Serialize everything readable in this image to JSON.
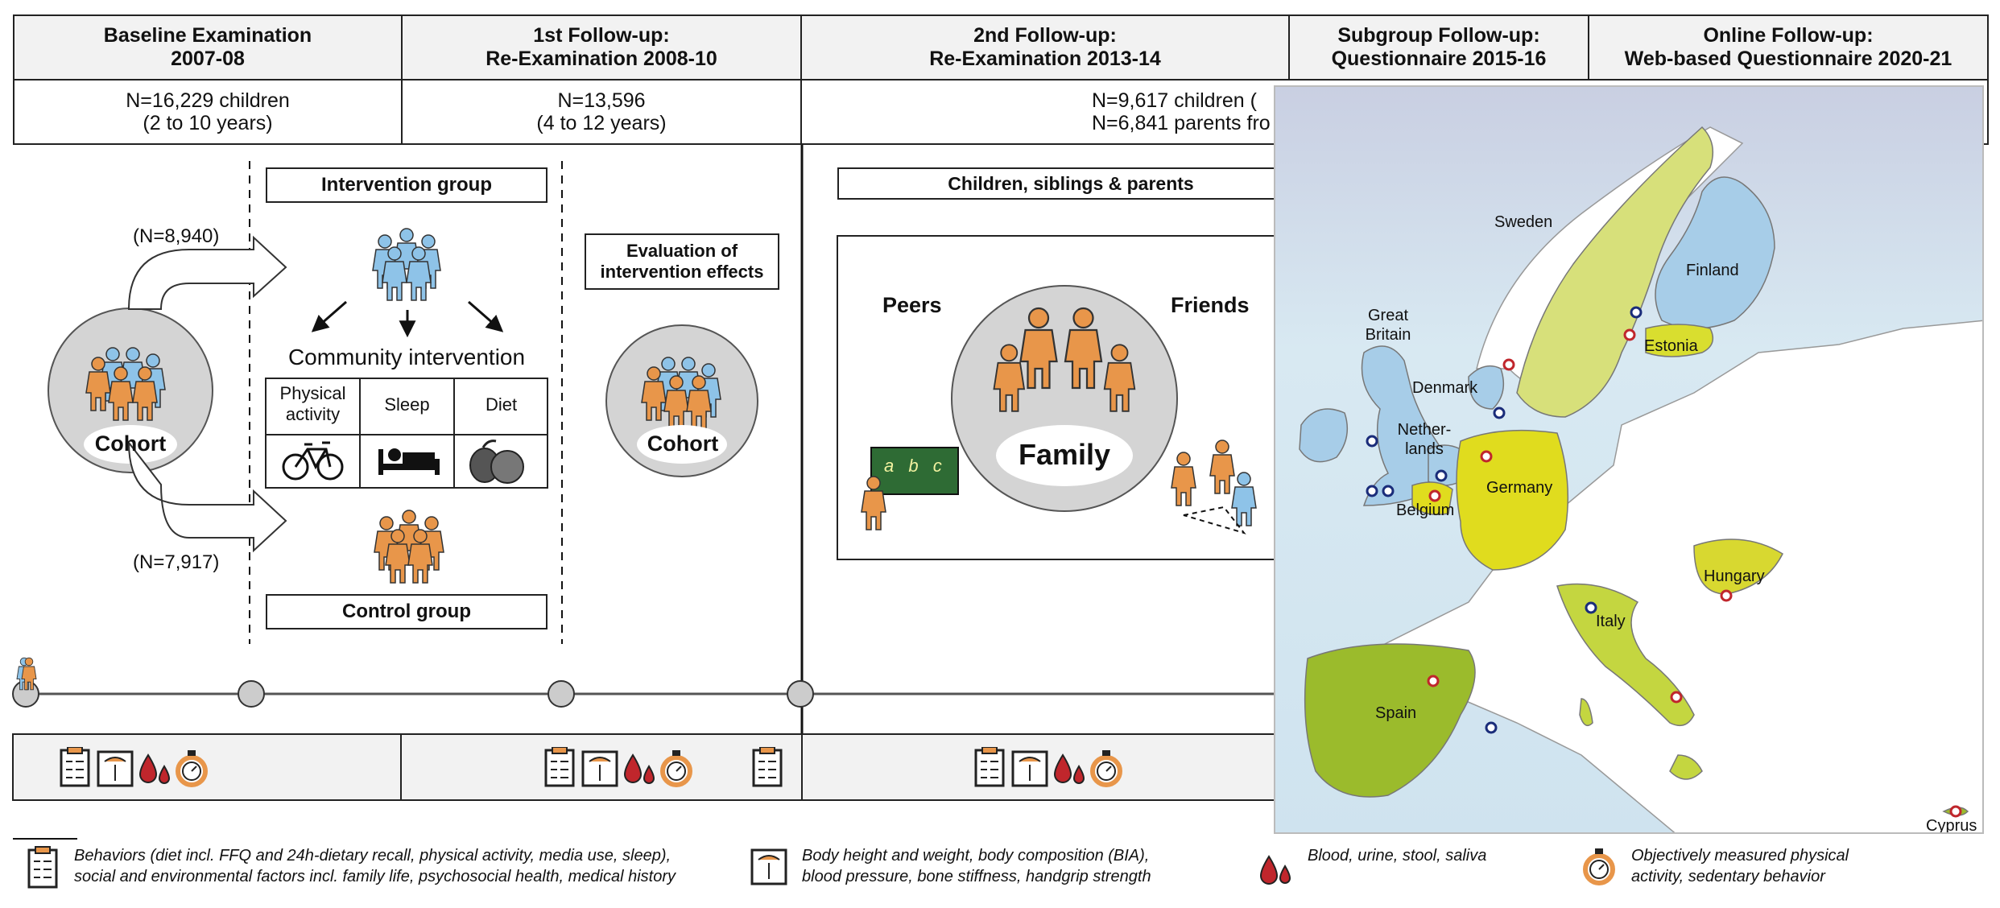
{
  "phases": [
    {
      "id": "baseline",
      "title": [
        "Baseline Examination",
        "2007-08"
      ],
      "n": [
        "N=16,229 children",
        "(2 to 10 years)"
      ]
    },
    {
      "id": "fu1",
      "title": [
        "1st Follow-up:",
        "Re-Examination 2008-10"
      ],
      "n": [
        "N=13,596",
        "(4 to 12 years)"
      ]
    },
    {
      "id": "fu2",
      "title": [
        "2nd Follow-up:",
        "Re-Examination 2013-14"
      ],
      "n": [
        "N=9,617 children (",
        "N=6,841 parents fro"
      ]
    },
    {
      "id": "subgroup",
      "title": [
        "Subgroup Follow-up:",
        "Questionnaire 2015-16"
      ]
    },
    {
      "id": "online",
      "title": [
        "Online Follow-up:",
        "Web-based Questionnaire 2020-21"
      ]
    }
  ],
  "baseline": {
    "cohort_label": "Cohort",
    "n_intervention": "(N=8,940)",
    "n_control": "(N=7,917)"
  },
  "intervention": {
    "group_label": "Intervention group",
    "community_label": "Community intervention",
    "components": [
      "Physical activity",
      "Sleep",
      "Diet"
    ],
    "control_label": "Control group"
  },
  "evaluation": {
    "label": [
      "Evaluation of",
      "intervention effects"
    ],
    "cohort_label": "Cohort"
  },
  "family_block": {
    "header": "Children, siblings & parents",
    "peers": "Peers",
    "friends": "Friends",
    "family": "Family",
    "board_text": "a b c"
  },
  "map": {
    "countries": [
      "Sweden",
      "Finland",
      "Estonia",
      "Great Britain",
      "Denmark",
      "Nether- lands",
      "Germany",
      "Belgium",
      "Hungary",
      "Italy",
      "Spain",
      "Cyprus"
    ],
    "colors": {
      "sea": "#cfe3ef",
      "land": "#ffffff",
      "green_dark": "#9bbb2c",
      "green_mid": "#c4d640",
      "yellow": "#e0dc1e",
      "blue": "#a7cde8"
    }
  },
  "legend": [
    {
      "icon": "clipboard-icon",
      "text": [
        "Behaviors (diet incl. FFQ and 24h-dietary recall, physical activity, media use, sleep),",
        "social and environmental factors incl. family life, psychosocial health, medical history"
      ]
    },
    {
      "icon": "scale-icon",
      "text": [
        "Body height and weight, body composition (BIA),",
        "blood pressure, bone stiffness, handgrip strength"
      ]
    },
    {
      "icon": "blood-drop-icon",
      "text": [
        "Blood, urine, stool, saliva"
      ]
    },
    {
      "icon": "stopwatch-icon",
      "text": [
        "Objectively measured physical",
        "activity, sedentary behavior"
      ]
    }
  ]
}
